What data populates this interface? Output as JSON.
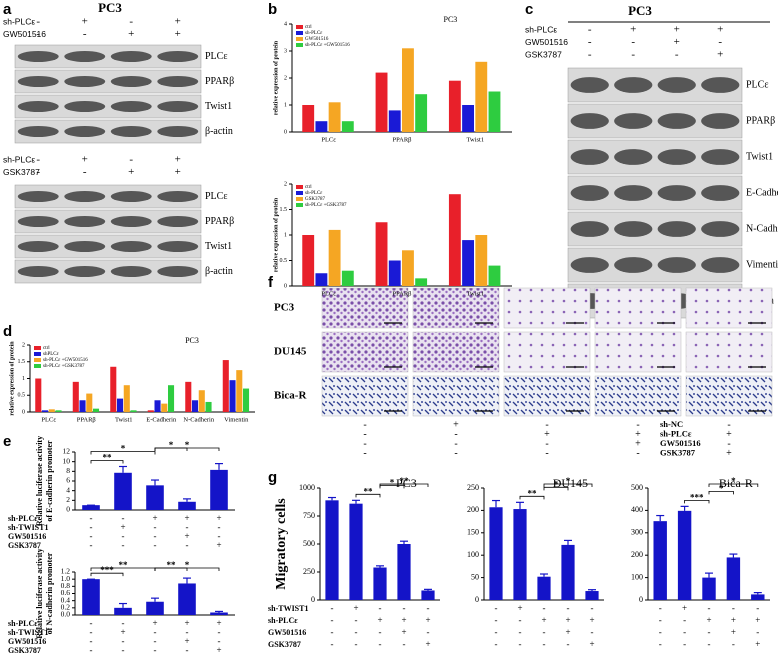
{
  "blots": [
    {
      "letter": "a",
      "title": "PC3",
      "sections": [
        {
          "conditions": [
            {
              "label": "sh-PLCε",
              "signs": [
                "-",
                "+",
                "-",
                "+"
              ]
            },
            {
              "label": "GW501516",
              "signs": [
                "-",
                "-",
                "+",
                "+"
              ]
            }
          ],
          "bands": [
            "PLCε",
            "PPARβ",
            "Twist1",
            "β-actin"
          ]
        },
        {
          "conditions": [
            {
              "label": "sh-PLCε",
              "signs": [
                "-",
                "+",
                "-",
                "+"
              ]
            },
            {
              "label": "GSK3787",
              "signs": [
                "-",
                "-",
                "+",
                "+"
              ]
            }
          ],
          "bands": [
            "PLCε",
            "PPARβ",
            "Twist1",
            "β-actin"
          ]
        }
      ]
    },
    {
      "letter": "c",
      "title": "PC3",
      "sections": [
        {
          "conditions": [
            {
              "label": "sh-PLCε",
              "signs": [
                "-",
                "+",
                "+",
                "+"
              ]
            },
            {
              "label": "GW501516",
              "signs": [
                "-",
                "-",
                "+",
                "-"
              ]
            },
            {
              "label": "GSK3787",
              "signs": [
                "-",
                "-",
                "-",
                "+"
              ]
            }
          ],
          "bands": [
            "PLCε",
            "PPARβ",
            "Twist1",
            "E-Cadherin",
            "N-Cadherin",
            "Vimentin",
            "β-actin"
          ]
        }
      ]
    }
  ],
  "micrographs": {
    "letter": "f",
    "rows": [
      "PC3",
      "DU145",
      "Bica-R"
    ],
    "conditions": [
      {
        "label": "sh-NC",
        "signs": [
          "-",
          "+",
          "-",
          "-",
          "-"
        ]
      },
      {
        "label": "sh-PLCε",
        "signs": [
          "-",
          "-",
          "+",
          "+",
          "+"
        ]
      },
      {
        "label": "GW501516",
        "signs": [
          "-",
          "-",
          "-",
          "+",
          "-"
        ]
      },
      {
        "label": "GSK3787",
        "signs": [
          "-",
          "-",
          "-",
          "-",
          "+"
        ]
      }
    ]
  },
  "letters": {
    "b": "b",
    "d": "d",
    "e": "e",
    "g": "g"
  },
  "chart_data": [
    {
      "type": "bar",
      "title": "PC3",
      "ylabel": "relative expression of protein",
      "categories": [
        "PLCε",
        "PPARβ",
        "Twist1"
      ],
      "ylim": [
        0,
        4
      ],
      "yticks": [
        0,
        1,
        2,
        3,
        4
      ],
      "series": [
        {
          "name": "ctrl",
          "color": "#e8202a",
          "values": [
            1,
            2.2,
            1.9
          ]
        },
        {
          "name": "sh-PLCε",
          "color": "#1a1ad6",
          "values": [
            0.4,
            0.8,
            1.0
          ]
        },
        {
          "name": "GW501516",
          "color": "#f5a623",
          "values": [
            1.1,
            3.1,
            2.6
          ]
        },
        {
          "name": "sh-PLCε +GW501516",
          "color": "#2ecc40",
          "values": [
            0.4,
            1.4,
            1.5
          ]
        }
      ]
    },
    {
      "type": "bar",
      "ylabel": "relative expression of protein",
      "categories": [
        "PLCε",
        "PPARβ",
        "Twist1"
      ],
      "ylim": [
        0,
        2
      ],
      "yticks": [
        0,
        0.5,
        1,
        1.5,
        2
      ],
      "series": [
        {
          "name": "ctrl",
          "color": "#e8202a",
          "values": [
            1,
            1.25,
            1.8
          ]
        },
        {
          "name": "sh-PLCε",
          "color": "#1a1ad6",
          "values": [
            0.25,
            0.5,
            0.9
          ]
        },
        {
          "name": "GSK3787",
          "color": "#f5a623",
          "values": [
            1.1,
            0.7,
            1.0
          ]
        },
        {
          "name": "sh-PLCε +GSK3787",
          "color": "#2ecc40",
          "values": [
            0.3,
            0.15,
            0.4
          ]
        }
      ]
    },
    {
      "type": "bar",
      "title": "PC3",
      "ylabel": "relative expression of protein",
      "categories": [
        "PLCε",
        "PPARβ",
        "Twist1",
        "E-Cadherin",
        "N-Cadherin",
        "Vimentin"
      ],
      "ylim": [
        0,
        2
      ],
      "yticks": [
        0,
        0.5,
        1,
        1.5,
        2
      ],
      "series": [
        {
          "name": "ctrl",
          "color": "#e8202a",
          "values": [
            1,
            0.9,
            1.35,
            0.05,
            0.9,
            1.55
          ]
        },
        {
          "name": "shPLCε",
          "color": "#1a1ad6",
          "values": [
            0.05,
            0.35,
            0.4,
            0.35,
            0.35,
            0.95
          ]
        },
        {
          "name": "sh-PLCε +GW501516",
          "color": "#f5a623",
          "values": [
            0.08,
            0.55,
            0.8,
            0.25,
            0.65,
            1.25
          ]
        },
        {
          "name": "sh-PLCε +GSK3787",
          "color": "#2ecc40",
          "values": [
            0.05,
            0.1,
            0.05,
            0.8,
            0.3,
            0.7
          ]
        }
      ]
    },
    {
      "type": "bar",
      "ylabel": [
        "Relative luciferase activity",
        "of E-cadherin promoter"
      ],
      "color": "#1414c8",
      "values": [
        1,
        7.7,
        5.1,
        1.7,
        8.3
      ],
      "errors": [
        0,
        1.3,
        1.1,
        0.6,
        1.3
      ],
      "ylim": [
        0,
        12
      ],
      "yticks": [
        0,
        2,
        4,
        6,
        8,
        10,
        12
      ],
      "brackets": [
        {
          "bars": [
            0,
            1
          ],
          "label": "**"
        },
        {
          "bars": [
            0,
            2
          ],
          "label": "*"
        },
        {
          "bars": [
            2,
            3
          ],
          "label": "*"
        },
        {
          "bars": [
            2,
            4
          ],
          "label": "*"
        }
      ],
      "conditions": [
        {
          "label": "sh-PLCε",
          "signs": [
            "-",
            "-",
            "+",
            "+",
            "+"
          ]
        },
        {
          "label": "sh-TWIST1",
          "signs": [
            "-",
            "+",
            "-",
            "-",
            "-"
          ]
        },
        {
          "label": "GW501516",
          "signs": [
            "-",
            "-",
            "-",
            "+",
            "-"
          ]
        },
        {
          "label": "GSK3787",
          "signs": [
            "-",
            "-",
            "-",
            "-",
            "+"
          ]
        }
      ]
    },
    {
      "type": "bar",
      "ylabel": [
        "Relative luciferase activity",
        "of N-cadherin promoter"
      ],
      "color": "#1414c8",
      "values": [
        1,
        0.2,
        0.37,
        0.88,
        0.07
      ],
      "errors": [
        0,
        0.12,
        0.1,
        0.15,
        0.03
      ],
      "ylim": [
        0,
        1.2
      ],
      "yticks": [
        {
          "value": 0,
          "label": "0.0"
        },
        0.2,
        0.4,
        0.6,
        0.8,
        {
          "value": 1,
          "label": "1.0"
        },
        1.2
      ],
      "brackets": [
        {
          "bars": [
            0,
            1
          ],
          "label": "***"
        },
        {
          "bars": [
            0,
            2
          ],
          "label": "**"
        },
        {
          "bars": [
            2,
            3
          ],
          "label": "**"
        },
        {
          "bars": [
            2,
            4
          ],
          "label": "*"
        }
      ],
      "conditions": [
        {
          "label": "sh-PLCε",
          "signs": [
            "-",
            "-",
            "+",
            "+",
            "+"
          ]
        },
        {
          "label": "sh-TWIST1",
          "signs": [
            "-",
            "+",
            "-",
            "-",
            "-"
          ]
        },
        {
          "label": "GW501516",
          "signs": [
            "-",
            "-",
            "-",
            "+",
            "-"
          ]
        },
        {
          "label": "GSK3787",
          "signs": [
            "-",
            "-",
            "-",
            "-",
            "+"
          ]
        }
      ]
    },
    {
      "type": "bar",
      "title": "PC3",
      "ylabel": "Migratory cells",
      "color": "#1414c8",
      "values": [
        890,
        860,
        290,
        500,
        85
      ],
      "errors": [
        25,
        30,
        15,
        25,
        10
      ],
      "ylim": [
        0,
        1000
      ],
      "yticks": [
        0,
        250,
        500,
        750,
        1000
      ],
      "brackets": [
        {
          "bars": [
            1,
            2
          ],
          "label": "**"
        },
        {
          "bars": [
            2,
            3
          ],
          "label": "*"
        },
        {
          "bars": [
            2,
            4
          ],
          "label": "**"
        }
      ],
      "conditions": [
        {
          "label": "sh-TWIST1",
          "signs": [
            "-",
            "+",
            "-",
            "-",
            "-"
          ]
        },
        {
          "label": "sh-PLCε",
          "signs": [
            "-",
            "-",
            "+",
            "+",
            "+"
          ]
        },
        {
          "label": "GW501516",
          "signs": [
            "-",
            "-",
            "-",
            "+",
            "-"
          ]
        },
        {
          "label": "GSK3787",
          "signs": [
            "-",
            "-",
            "-",
            "-",
            "+"
          ]
        }
      ]
    },
    {
      "type": "bar",
      "title": "DU145",
      "color": "#1414c8",
      "values": [
        207,
        203,
        52,
        123,
        20
      ],
      "errors": [
        15,
        15,
        6,
        10,
        3
      ],
      "ylim": [
        0,
        250
      ],
      "yticks": [
        0,
        50,
        100,
        150,
        200,
        250
      ],
      "brackets": [
        {
          "bars": [
            1,
            2
          ],
          "label": "**"
        },
        {
          "bars": [
            2,
            3
          ],
          "label": "*"
        },
        {
          "bars": [
            2,
            4
          ],
          "label": "*"
        }
      ],
      "conditions": [
        {
          "signs": [
            "-",
            "+",
            "-",
            "-",
            "-"
          ]
        },
        {
          "signs": [
            "-",
            "-",
            "+",
            "+",
            "+"
          ]
        },
        {
          "signs": [
            "-",
            "-",
            "-",
            "+",
            "-"
          ]
        },
        {
          "signs": [
            "-",
            "-",
            "-",
            "-",
            "+"
          ]
        }
      ]
    },
    {
      "type": "bar",
      "title": "Bica-R",
      "color": "#1414c8",
      "values": [
        352,
        398,
        100,
        190,
        25
      ],
      "errors": [
        25,
        20,
        20,
        15,
        8
      ],
      "ylim": [
        0,
        500
      ],
      "yticks": [
        0,
        100,
        200,
        300,
        400,
        500
      ],
      "brackets": [
        {
          "bars": [
            1,
            2
          ],
          "label": "***"
        },
        {
          "bars": [
            2,
            3
          ],
          "label": "*"
        },
        {
          "bars": [
            2,
            4
          ],
          "label": "*"
        }
      ],
      "conditions": [
        {
          "signs": [
            "-",
            "+",
            "-",
            "-",
            "-"
          ]
        },
        {
          "signs": [
            "-",
            "-",
            "+",
            "+",
            "+"
          ]
        },
        {
          "signs": [
            "-",
            "-",
            "-",
            "+",
            "-"
          ]
        },
        {
          "signs": [
            "-",
            "-",
            "-",
            "-",
            "+"
          ]
        }
      ]
    }
  ]
}
